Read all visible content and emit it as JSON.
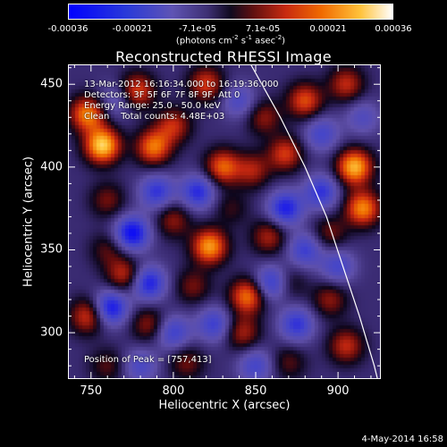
{
  "colorbar": {
    "ticks": [
      "-0.00036",
      "-0.00021",
      "-7.1e-05",
      "7.1e-05",
      "0.00021",
      "0.00036"
    ],
    "unit_prefix": "(photons cm",
    "unit_exp1": "-2",
    "unit_mid1": " s",
    "unit_exp2": "-1",
    "unit_mid2": " asec",
    "unit_exp3": "-2",
    "unit_suffix": ")",
    "range": [
      -0.00036,
      0.00036
    ]
  },
  "chart_data": {
    "type": "heatmap",
    "title": "Reconstructed RHESSI Image",
    "xlabel": "Heliocentric X (arcsec)",
    "ylabel": "Heliocentric Y (arcsec)",
    "xlim": [
      736,
      926
    ],
    "ylim": [
      272,
      462
    ],
    "x_ticks": [
      750,
      800,
      850,
      900
    ],
    "y_ticks": [
      300,
      350,
      400,
      450
    ],
    "peak": [
      757,
      413
    ],
    "limb_points": [
      [
        847,
        462
      ],
      [
        865,
        430
      ],
      [
        880,
        400
      ],
      [
        893,
        370
      ],
      [
        903,
        340
      ],
      [
        913,
        310
      ],
      [
        922,
        280
      ],
      [
        924,
        272
      ]
    ],
    "annotations": [
      "13-Mar-2012 16:16:34.000 to 16:19:36.000",
      "Detectors: 3F 5F 6F 7F 8F 9F, Att 0",
      "Energy Range: 25.0 - 50.0 keV",
      "Clean    Total counts: 4.48E+03"
    ],
    "peak_label": "Position of Peak = [757,413]",
    "sources": [
      {
        "x": 757,
        "y": 413,
        "v": 0.00036
      },
      {
        "x": 748,
        "y": 432,
        "v": 0.00028
      },
      {
        "x": 778,
        "y": 446,
        "v": 0.00022
      },
      {
        "x": 788,
        "y": 412,
        "v": 0.00026
      },
      {
        "x": 800,
        "y": 425,
        "v": 0.00018
      },
      {
        "x": 760,
        "y": 380,
        "v": 0.00012
      },
      {
        "x": 820,
        "y": 450,
        "v": 0.0002
      },
      {
        "x": 830,
        "y": 400,
        "v": 0.00024
      },
      {
        "x": 848,
        "y": 398,
        "v": 0.00016
      },
      {
        "x": 855,
        "y": 430,
        "v": 0.00014
      },
      {
        "x": 868,
        "y": 408,
        "v": 0.0002
      },
      {
        "x": 880,
        "y": 440,
        "v": 0.00022
      },
      {
        "x": 905,
        "y": 450,
        "v": 0.00018
      },
      {
        "x": 910,
        "y": 400,
        "v": 0.00033
      },
      {
        "x": 915,
        "y": 375,
        "v": 0.00028
      },
      {
        "x": 895,
        "y": 360,
        "v": 0.00012
      },
      {
        "x": 800,
        "y": 368,
        "v": 0.00014
      },
      {
        "x": 835,
        "y": 375,
        "v": 8e-05
      },
      {
        "x": 822,
        "y": 352,
        "v": 0.0003
      },
      {
        "x": 858,
        "y": 358,
        "v": 0.00016
      },
      {
        "x": 770,
        "y": 335,
        "v": 0.00018
      },
      {
        "x": 760,
        "y": 350,
        "v": 0.0001
      },
      {
        "x": 748,
        "y": 310,
        "v": 0.0002
      },
      {
        "x": 785,
        "y": 305,
        "v": 0.00014
      },
      {
        "x": 812,
        "y": 328,
        "v": 0.00012
      },
      {
        "x": 845,
        "y": 322,
        "v": 0.00026
      },
      {
        "x": 842,
        "y": 300,
        "v": 0.00016
      },
      {
        "x": 870,
        "y": 330,
        "v": 0.0001
      },
      {
        "x": 895,
        "y": 320,
        "v": 0.00014
      },
      {
        "x": 905,
        "y": 292,
        "v": 0.00018
      },
      {
        "x": 808,
        "y": 282,
        "v": 0.00012
      },
      {
        "x": 870,
        "y": 282,
        "v": 0.0001
      },
      {
        "x": 760,
        "y": 280,
        "v": 0.0001
      },
      {
        "x": 790,
        "y": 385,
        "v": -0.0002
      },
      {
        "x": 775,
        "y": 360,
        "v": -0.00028
      },
      {
        "x": 815,
        "y": 385,
        "v": -0.00022
      },
      {
        "x": 868,
        "y": 375,
        "v": -0.00024
      },
      {
        "x": 890,
        "y": 385,
        "v": -0.0002
      },
      {
        "x": 880,
        "y": 350,
        "v": -0.00018
      },
      {
        "x": 860,
        "y": 330,
        "v": -0.00022
      },
      {
        "x": 785,
        "y": 330,
        "v": -0.00024
      },
      {
        "x": 762,
        "y": 315,
        "v": -0.00026
      },
      {
        "x": 800,
        "y": 300,
        "v": -0.00018
      },
      {
        "x": 825,
        "y": 305,
        "v": -0.00018
      },
      {
        "x": 875,
        "y": 305,
        "v": -0.0002
      },
      {
        "x": 900,
        "y": 340,
        "v": -0.00016
      },
      {
        "x": 840,
        "y": 440,
        "v": -0.00014
      },
      {
        "x": 765,
        "y": 440,
        "v": -0.00012
      },
      {
        "x": 890,
        "y": 420,
        "v": -0.00016
      },
      {
        "x": 915,
        "y": 430,
        "v": -0.00012
      },
      {
        "x": 850,
        "y": 280,
        "v": -0.00016
      },
      {
        "x": 780,
        "y": 280,
        "v": -0.00014
      }
    ]
  },
  "timestamp": "4-May-2014 16:58"
}
